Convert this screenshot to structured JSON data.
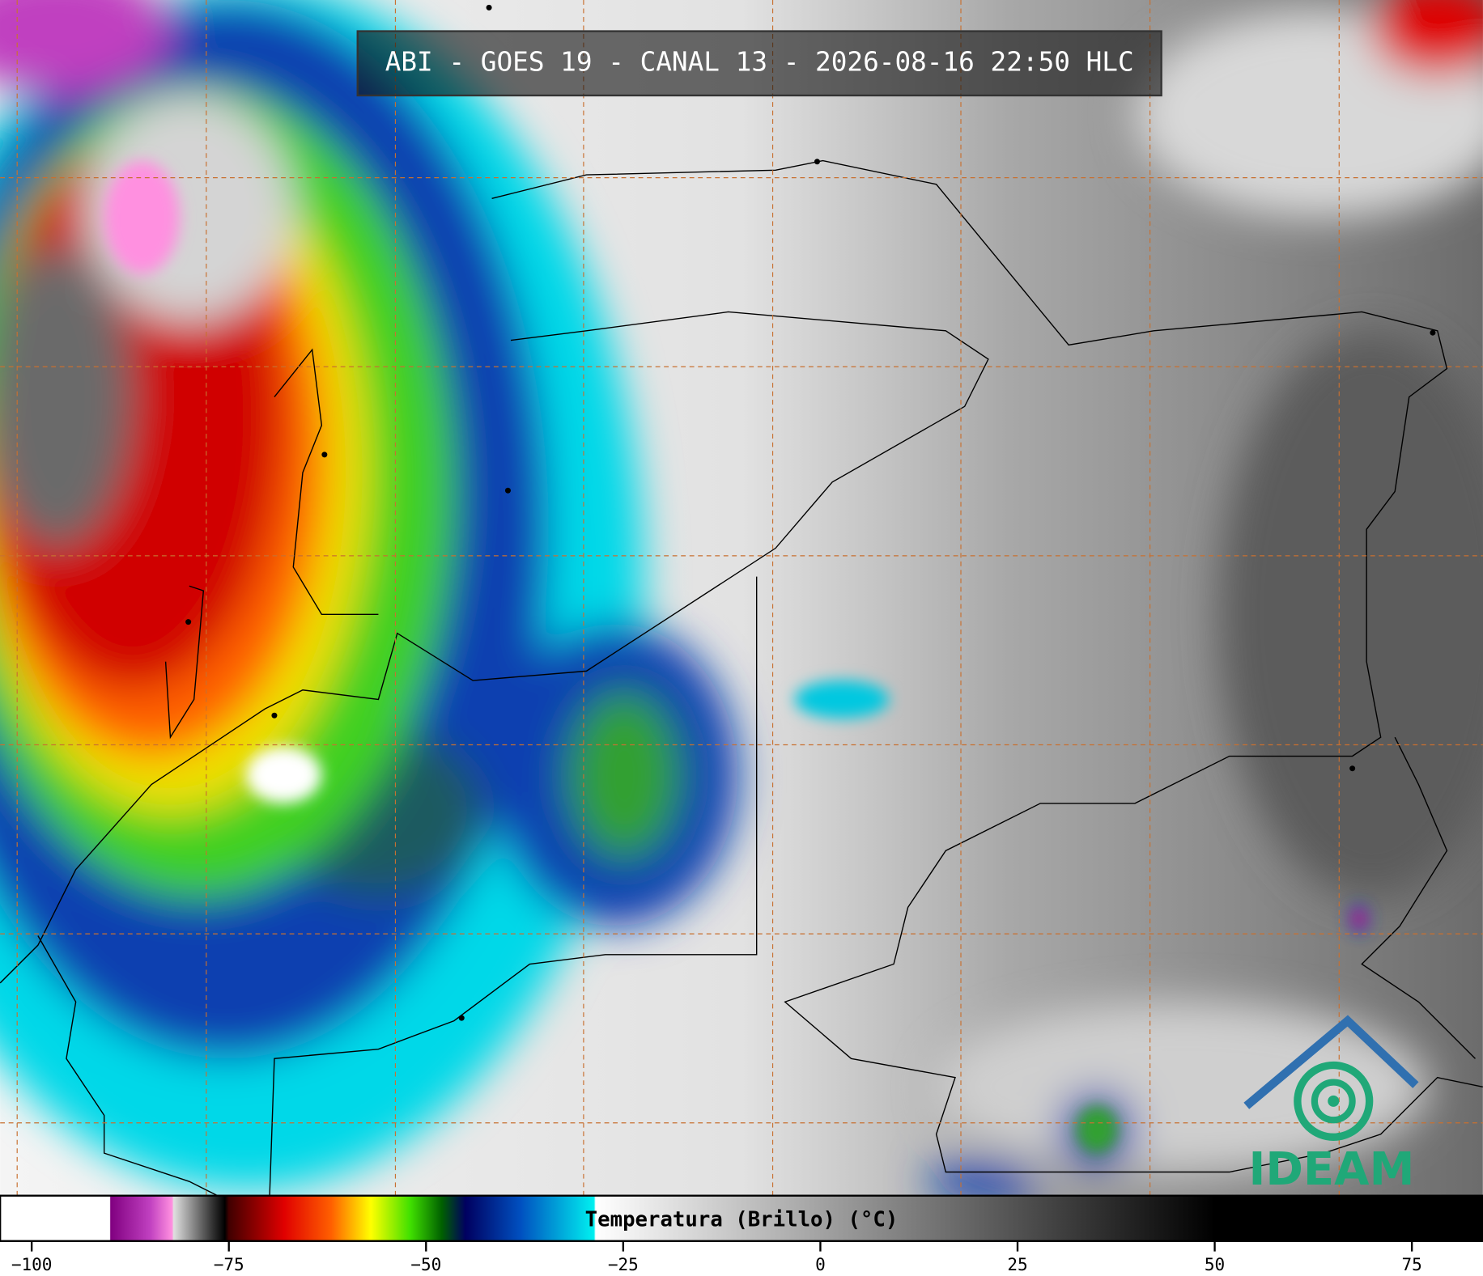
{
  "title": "ABI - GOES 19 - CANAL 13 - 2026-08-16 22:50 HLC",
  "logo": "IDEAM",
  "colorbar": {
    "label": "Temperatura (Brillo) (°C)",
    "range": [
      -104,
      84
    ],
    "ticks": [
      {
        "value": -100,
        "label": "−100"
      },
      {
        "value": -75,
        "label": "−75"
      },
      {
        "value": -50,
        "label": "−50"
      },
      {
        "value": -25,
        "label": "−25"
      },
      0,
      25,
      50,
      75
    ],
    "colormap": [
      [
        -104,
        "#ffffff"
      ],
      [
        -90.1,
        "#ffffff"
      ],
      [
        -90,
        "#800080"
      ],
      [
        -85,
        "#c040c0"
      ],
      [
        -82.2,
        "#ff90e0"
      ],
      [
        -82,
        "#e0e0e0"
      ],
      [
        -77,
        "#303030"
      ],
      [
        -75.5,
        "#000000"
      ],
      [
        -75,
        "#400000"
      ],
      [
        -68,
        "#e00000"
      ],
      [
        -62,
        "#ff6000"
      ],
      [
        -57,
        "#ffff00"
      ],
      [
        -52,
        "#40e000"
      ],
      [
        -48,
        "#006000"
      ],
      [
        -45,
        "#000060"
      ],
      [
        -38,
        "#0050c0"
      ],
      [
        -28.7,
        "#00f0f0"
      ],
      [
        -28.5,
        "#ffffff"
      ],
      [
        50,
        "#000000"
      ],
      [
        84,
        "#000000"
      ]
    ]
  }
}
